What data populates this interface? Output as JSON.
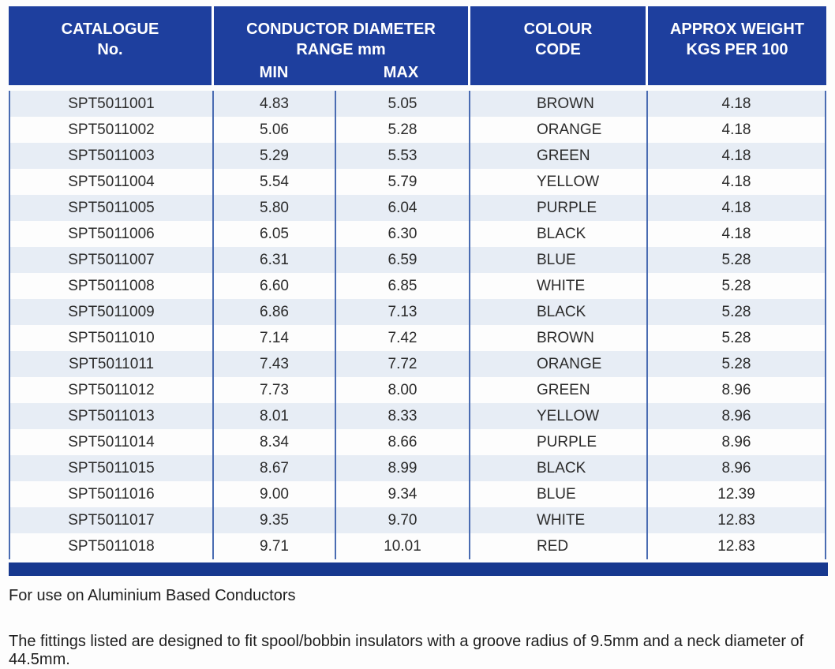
{
  "table": {
    "header": {
      "catalogue_line1": "CATALOGUE",
      "catalogue_line2": "No.",
      "diameter_line1": "CONDUCTOR DIAMETER",
      "diameter_line2": "RANGE mm",
      "min_label": "MIN",
      "max_label": "MAX",
      "colour_line1": "COLOUR",
      "colour_line2": "CODE",
      "weight_line1": "APPROX WEIGHT",
      "weight_line2": "KGS PER 100"
    },
    "rows": [
      {
        "catalogue": "SPT5011001",
        "min": "4.83",
        "max": "5.05",
        "colour": "BROWN",
        "weight": "4.18"
      },
      {
        "catalogue": "SPT5011002",
        "min": "5.06",
        "max": "5.28",
        "colour": "ORANGE",
        "weight": "4.18"
      },
      {
        "catalogue": "SPT5011003",
        "min": "5.29",
        "max": "5.53",
        "colour": "GREEN",
        "weight": "4.18"
      },
      {
        "catalogue": "SPT5011004",
        "min": "5.54",
        "max": "5.79",
        "colour": "YELLOW",
        "weight": "4.18"
      },
      {
        "catalogue": "SPT5011005",
        "min": "5.80",
        "max": "6.04",
        "colour": "PURPLE",
        "weight": "4.18"
      },
      {
        "catalogue": "SPT5011006",
        "min": "6.05",
        "max": "6.30",
        "colour": "BLACK",
        "weight": "4.18"
      },
      {
        "catalogue": "SPT5011007",
        "min": "6.31",
        "max": "6.59",
        "colour": "BLUE",
        "weight": "5.28"
      },
      {
        "catalogue": "SPT5011008",
        "min": "6.60",
        "max": "6.85",
        "colour": "WHITE",
        "weight": "5.28"
      },
      {
        "catalogue": "SPT5011009",
        "min": "6.86",
        "max": "7.13",
        "colour": "BLACK",
        "weight": "5.28"
      },
      {
        "catalogue": "SPT5011010",
        "min": "7.14",
        "max": "7.42",
        "colour": "BROWN",
        "weight": "5.28"
      },
      {
        "catalogue": "SPT5011011",
        "min": "7.43",
        "max": "7.72",
        "colour": "ORANGE",
        "weight": "5.28"
      },
      {
        "catalogue": "SPT5011012",
        "min": "7.73",
        "max": "8.00",
        "colour": "GREEN",
        "weight": "8.96"
      },
      {
        "catalogue": "SPT5011013",
        "min": "8.01",
        "max": "8.33",
        "colour": "YELLOW",
        "weight": "8.96"
      },
      {
        "catalogue": "SPT5011014",
        "min": "8.34",
        "max": "8.66",
        "colour": "PURPLE",
        "weight": "8.96"
      },
      {
        "catalogue": "SPT5011015",
        "min": "8.67",
        "max": "8.99",
        "colour": "BLACK",
        "weight": "8.96"
      },
      {
        "catalogue": "SPT5011016",
        "min": "9.00",
        "max": "9.34",
        "colour": "BLUE",
        "weight": "12.39"
      },
      {
        "catalogue": "SPT5011017",
        "min": "9.35",
        "max": "9.70",
        "colour": "WHITE",
        "weight": "12.83"
      },
      {
        "catalogue": "SPT5011018",
        "min": "9.71",
        "max": "10.01",
        "colour": "RED",
        "weight": "12.83"
      }
    ]
  },
  "notes": {
    "note1": "For use on Aluminium Based Conductors",
    "note2": "The fittings listed are designed to fit spool/bobbin insulators with a groove radius of 9.5mm and a neck diameter of 44.5mm."
  },
  "colors": {
    "header_blue": "#1e3f9e",
    "bottom_bar_blue": "#17388f",
    "divider_blue": "#4a6cb2",
    "row_stripe": "#e7edf5"
  }
}
